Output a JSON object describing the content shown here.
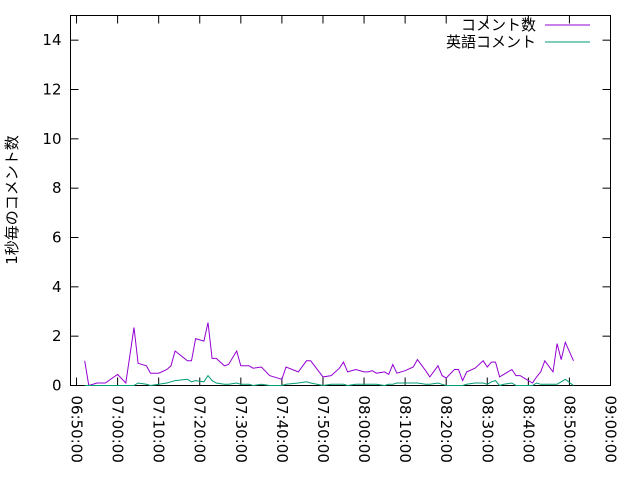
{
  "chart_data": {
    "type": "line",
    "title": "",
    "xlabel": "",
    "ylabel": "1秒毎のコメント数",
    "xlim": [
      "06:48:32",
      "09:00:00"
    ],
    "ylim": [
      0,
      15
    ],
    "grid": false,
    "legend_position": "top-right",
    "x_tick_labels": [
      "06:50:00",
      "07:00:00",
      "07:10:00",
      "07:20:00",
      "07:30:00",
      "07:40:00",
      "07:50:00",
      "08:00:00",
      "08:10:00",
      "08:20:00",
      "08:30:00",
      "08:40:00",
      "08:50:00",
      "09:00:00"
    ],
    "y_tick_labels": [
      "0",
      "2",
      "4",
      "6",
      "8",
      "10",
      "12",
      "14"
    ],
    "x": [
      "06:52",
      "06:53",
      "06:55",
      "06:57",
      "07:00",
      "07:02",
      "07:04",
      "07:05",
      "07:07",
      "07:08",
      "07:10",
      "07:12",
      "07:13",
      "07:14",
      "07:17",
      "07:18",
      "07:19",
      "07:21",
      "07:22",
      "07:23",
      "07:24",
      "07:26",
      "07:27",
      "07:29",
      "07:30",
      "07:32",
      "07:33",
      "07:35",
      "07:37",
      "07:40",
      "07:41",
      "07:44",
      "07:46",
      "07:47",
      "07:50",
      "07:52",
      "07:54",
      "07:55",
      "07:56",
      "07:58",
      "08:00",
      "08:01",
      "08:02",
      "08:03",
      "08:05",
      "08:06",
      "08:07",
      "08:08",
      "08:10",
      "08:12",
      "08:13",
      "08:15",
      "08:16",
      "08:18",
      "08:19",
      "08:20",
      "08:22",
      "08:23",
      "08:24",
      "08:25",
      "08:27",
      "08:29",
      "08:30",
      "08:31",
      "08:32",
      "08:33",
      "08:34",
      "08:36",
      "08:37",
      "08:38",
      "08:40",
      "08:41",
      "08:42",
      "08:43",
      "08:44",
      "08:46",
      "08:47",
      "08:48",
      "08:49",
      "08:51"
    ],
    "series": [
      {
        "name": "コメント数",
        "color": "#9400d3",
        "values": [
          1.0,
          0.0,
          0.1,
          0.1,
          0.45,
          0.1,
          2.35,
          0.9,
          0.8,
          0.5,
          0.5,
          0.65,
          0.8,
          1.4,
          1.0,
          1.0,
          1.9,
          1.8,
          2.55,
          1.1,
          1.1,
          0.8,
          0.85,
          1.4,
          0.8,
          0.8,
          0.7,
          0.75,
          0.4,
          0.25,
          0.75,
          0.55,
          1.0,
          1.0,
          0.35,
          0.4,
          0.7,
          0.95,
          0.55,
          0.65,
          0.55,
          0.55,
          0.6,
          0.5,
          0.55,
          0.45,
          0.85,
          0.5,
          0.6,
          0.75,
          1.05,
          0.6,
          0.35,
          0.8,
          0.4,
          0.3,
          0.65,
          0.65,
          0.2,
          0.55,
          0.7,
          1.0,
          0.75,
          0.95,
          0.95,
          0.35,
          0.45,
          0.65,
          0.4,
          0.4,
          0.2,
          0.1,
          0.35,
          0.55,
          1.0,
          0.55,
          1.7,
          1.05,
          1.75,
          1.0
        ]
      },
      {
        "name": "英語コメント",
        "color": "#009e73",
        "values": [
          0,
          0,
          0,
          0,
          0,
          0,
          0,
          0.1,
          0.05,
          0,
          0.05,
          0.1,
          0.15,
          0.2,
          0.25,
          0.15,
          0.2,
          0.15,
          0.4,
          0.2,
          0.1,
          0.05,
          0.05,
          0.1,
          0.05,
          0.05,
          0,
          0.05,
          0,
          0,
          0.05,
          0.1,
          0.15,
          0.1,
          0,
          0.05,
          0.05,
          0.05,
          0,
          0.05,
          0.05,
          0.05,
          0.05,
          0.05,
          0,
          0.05,
          0.05,
          0.1,
          0.1,
          0.1,
          0.1,
          0.05,
          0.05,
          0.1,
          0.05,
          0,
          0,
          0,
          0,
          0.05,
          0.1,
          0.1,
          0.05,
          0.15,
          0.2,
          0,
          0.05,
          0.1,
          0,
          0,
          0,
          0,
          0.1,
          0.05,
          0.05,
          0.05,
          0.05,
          0.15,
          0.25,
          0
        ]
      }
    ]
  }
}
